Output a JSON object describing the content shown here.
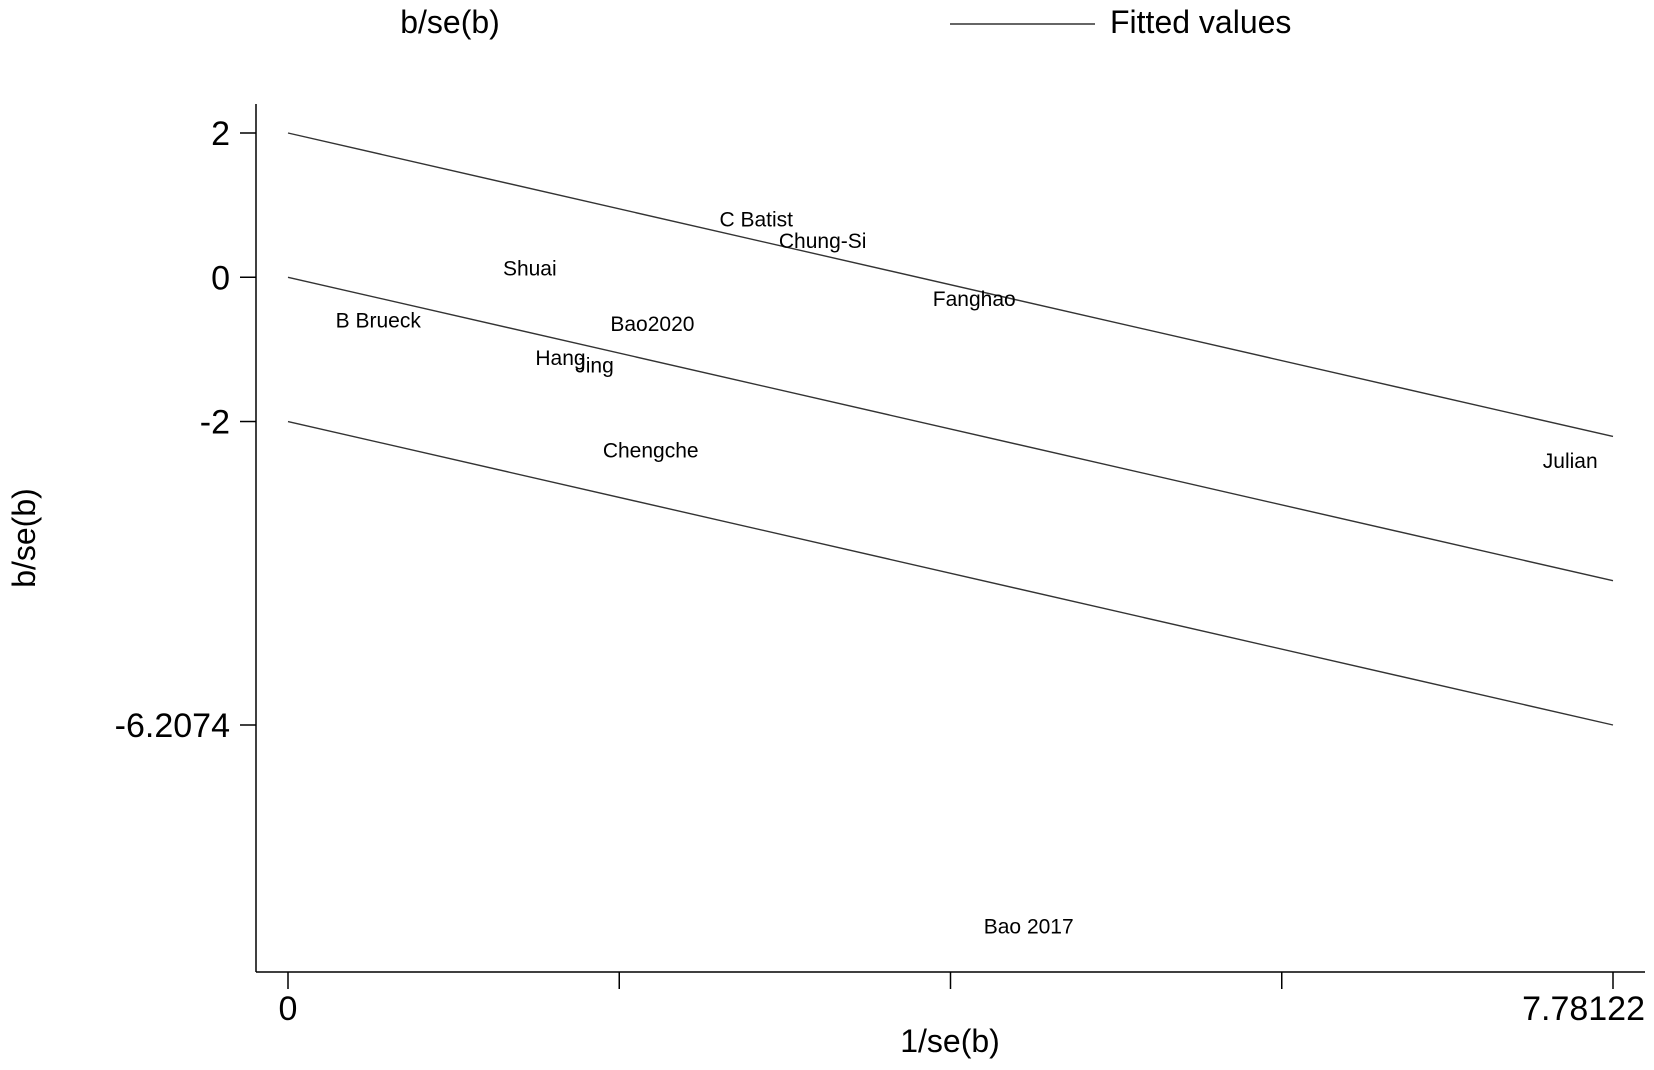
{
  "chart_data": {
    "type": "scatter",
    "title": "",
    "xlabel": "1/se(b)",
    "ylabel": "b/se(b)",
    "xlim": [
      0,
      7.78122
    ],
    "ylim": [
      -9.3,
      2.4
    ],
    "x_ticks": [
      {
        "value": 0,
        "label": "0"
      },
      {
        "value": 1.945305,
        "label": ""
      },
      {
        "value": 3.89061,
        "label": ""
      },
      {
        "value": 5.835915,
        "label": ""
      },
      {
        "value": 7.78122,
        "label": "7.78122"
      }
    ],
    "y_ticks": [
      {
        "value": 2,
        "label": "2"
      },
      {
        "value": 0,
        "label": "0"
      },
      {
        "value": -2,
        "label": "-2"
      },
      {
        "value": -6.2074,
        "label": "-6.2074"
      }
    ],
    "legend": {
      "position": "top",
      "entries": [
        {
          "label": "b/se(b)",
          "marker": "none"
        },
        {
          "label": "Fitted values",
          "marker": "line"
        }
      ]
    },
    "points": [
      {
        "label": "B Brueck",
        "x": 0.53,
        "y": -0.6
      },
      {
        "label": "Shuai",
        "x": 1.42,
        "y": 0.12
      },
      {
        "label": "Bao2020",
        "x": 2.14,
        "y": -0.65
      },
      {
        "label": "Hang",
        "x": 1.6,
        "y": -1.12
      },
      {
        "label": "Jing",
        "x": 1.8,
        "y": -1.22
      },
      {
        "label": "Chengche",
        "x": 2.13,
        "y": -2.4
      },
      {
        "label": "C Batist",
        "x": 2.75,
        "y": 0.8
      },
      {
        "label": "Chung-Si",
        "x": 3.14,
        "y": 0.5
      },
      {
        "label": "Fanghao",
        "x": 4.03,
        "y": -0.3
      },
      {
        "label": "Bao 2017",
        "x": 4.35,
        "y": -9.0
      },
      {
        "label": "Julian",
        "x": 7.53,
        "y": -2.55
      }
    ],
    "fitted_lines": [
      {
        "name": "upper",
        "x": [
          0,
          7.78122
        ],
        "y": [
          2,
          -2.2074
        ]
      },
      {
        "name": "fit",
        "x": [
          0,
          7.78122
        ],
        "y": [
          0,
          -4.2074
        ]
      },
      {
        "name": "lower",
        "x": [
          0,
          7.78122
        ],
        "y": [
          -2,
          -6.2074
        ]
      }
    ],
    "grid": false
  }
}
